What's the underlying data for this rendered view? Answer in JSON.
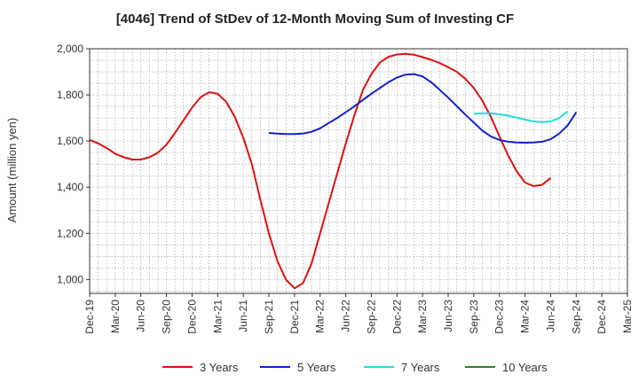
{
  "chart_data": {
    "type": "line",
    "title": "[4046]  Trend of StDev of 12-Month Moving Sum of Investing CF",
    "xlabel": "",
    "ylabel": "Amount (million yen)",
    "ylim": [
      940,
      2000
    ],
    "y_ticks": [
      1000,
      1200,
      1400,
      1600,
      1800,
      2000
    ],
    "y_tick_labels": [
      "1,000",
      "1,200",
      "1,400",
      "1,600",
      "1,800",
      "2,000"
    ],
    "x_ticks": [
      "Dec-19",
      "Mar-20",
      "Jun-20",
      "Sep-20",
      "Dec-20",
      "Mar-21",
      "Jun-21",
      "Sep-21",
      "Dec-21",
      "Mar-22",
      "Jun-22",
      "Sep-22",
      "Dec-22",
      "Mar-23",
      "Jun-23",
      "Sep-23",
      "Dec-23",
      "Mar-24",
      "Jun-24",
      "Sep-24",
      "Dec-24",
      "Mar-25"
    ],
    "x_start": "Dec-19",
    "months_per_tick": 3,
    "grid": true,
    "legend_position": "bottom",
    "series": [
      {
        "name": "3 Years",
        "color": "#dd1111",
        "start_index": 0,
        "values": [
          1605,
          1590,
          1570,
          1545,
          1530,
          1520,
          1520,
          1530,
          1550,
          1585,
          1635,
          1690,
          1745,
          1790,
          1812,
          1805,
          1770,
          1705,
          1615,
          1500,
          1345,
          1200,
          1080,
          1000,
          962,
          985,
          1070,
          1200,
          1330,
          1460,
          1590,
          1710,
          1820,
          1890,
          1940,
          1965,
          1975,
          1978,
          1974,
          1964,
          1952,
          1938,
          1920,
          1900,
          1870,
          1830,
          1775,
          1705,
          1620,
          1540,
          1470,
          1420,
          1405,
          1410,
          1440
        ]
      },
      {
        "name": "5 Years",
        "color": "#1122cc",
        "start_index": 21,
        "values": [
          1635,
          1632,
          1630,
          1630,
          1633,
          1640,
          1655,
          1678,
          1700,
          1725,
          1750,
          1778,
          1805,
          1830,
          1855,
          1875,
          1888,
          1890,
          1880,
          1855,
          1822,
          1788,
          1752,
          1715,
          1680,
          1645,
          1620,
          1605,
          1597,
          1594,
          1593,
          1594,
          1597,
          1608,
          1632,
          1668,
          1725
        ]
      },
      {
        "name": "7 Years",
        "color": "#22dddd",
        "start_index": 45,
        "values": [
          1718,
          1720,
          1720,
          1716,
          1710,
          1702,
          1693,
          1685,
          1682,
          1685,
          1700,
          1728
        ]
      },
      {
        "name": "10 Years",
        "color": "#228822",
        "start_index": 0,
        "values": []
      }
    ]
  }
}
